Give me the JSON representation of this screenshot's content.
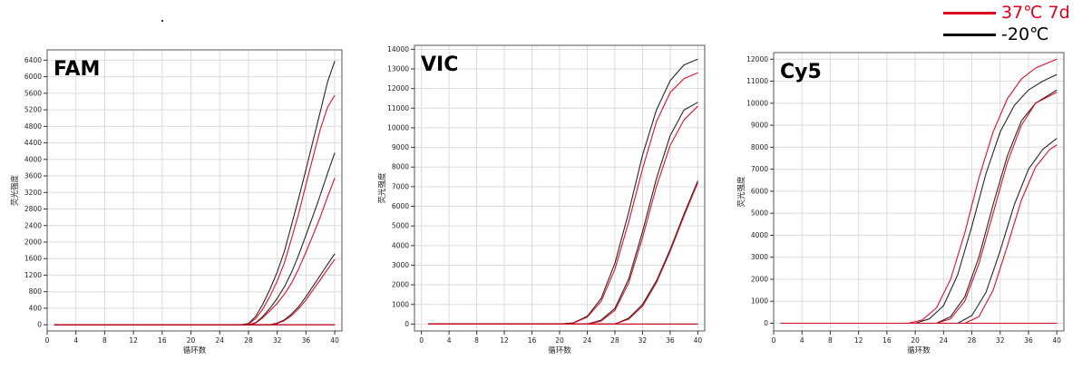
{
  "legend": {
    "items": [
      {
        "label": "37℃ 7d",
        "color": "#e0001b"
      },
      {
        "label": "-20℃",
        "color": "#000000"
      }
    ]
  },
  "chart_data": [
    {
      "type": "line",
      "title": "FAM",
      "xlabel": "循环数",
      "ylabel": "荧光强度",
      "xlim": [
        0,
        41
      ],
      "ylim": [
        -150,
        6650
      ],
      "xticks": [
        0,
        4,
        8,
        12,
        16,
        20,
        24,
        28,
        32,
        36,
        40
      ],
      "yticks": [
        0,
        400,
        800,
        1200,
        1600,
        2000,
        2400,
        2800,
        3200,
        3600,
        4000,
        4400,
        4800,
        5200,
        5600,
        6000,
        6400
      ],
      "grid": true,
      "series": [
        {
          "group": "-20℃",
          "x": [
            1,
            27,
            28,
            29,
            30,
            31,
            32,
            33,
            34,
            35,
            36,
            37,
            38,
            39,
            40
          ],
          "y": [
            0,
            0,
            30,
            200,
            500,
            860,
            1280,
            1780,
            2420,
            3070,
            3760,
            4460,
            5160,
            5870,
            6380
          ]
        },
        {
          "group": "37℃ 7d",
          "x": [
            1,
            27,
            28,
            29,
            30,
            31,
            32,
            33,
            34,
            35,
            36,
            37,
            38,
            39,
            40
          ],
          "y": [
            0,
            0,
            20,
            150,
            380,
            690,
            1060,
            1500,
            2090,
            2700,
            3400,
            4070,
            4730,
            5260,
            5550
          ]
        },
        {
          "group": "-20℃",
          "x": [
            1,
            28,
            29,
            30,
            31,
            32,
            33,
            34,
            35,
            36,
            37,
            38,
            39,
            40
          ],
          "y": [
            0,
            0,
            50,
            200,
            400,
            640,
            920,
            1270,
            1690,
            2170,
            2650,
            3140,
            3660,
            4160
          ]
        },
        {
          "group": "37℃ 7d",
          "x": [
            1,
            28,
            29,
            30,
            31,
            32,
            33,
            34,
            35,
            36,
            37,
            38,
            39,
            40
          ],
          "y": [
            0,
            0,
            40,
            170,
            340,
            520,
            740,
            1010,
            1360,
            1760,
            2180,
            2610,
            3090,
            3550
          ]
        },
        {
          "group": "-20℃",
          "x": [
            1,
            31,
            32,
            33,
            34,
            35,
            36,
            37,
            38,
            39,
            40
          ],
          "y": [
            0,
            0,
            40,
            120,
            260,
            440,
            680,
            940,
            1200,
            1460,
            1720
          ]
        },
        {
          "group": "37℃ 7d",
          "x": [
            1,
            31,
            32,
            33,
            34,
            35,
            36,
            37,
            38,
            39,
            40
          ],
          "y": [
            0,
            0,
            30,
            100,
            220,
            390,
            600,
            850,
            1090,
            1340,
            1580
          ]
        },
        {
          "group": "-20℃",
          "x": [
            1,
            40
          ],
          "y": [
            0,
            0
          ]
        },
        {
          "group": "37℃ 7d",
          "x": [
            1,
            40
          ],
          "y": [
            0,
            0
          ]
        }
      ]
    },
    {
      "type": "line",
      "title": "VIC",
      "xlabel": "循环数",
      "ylabel": "荧光强度",
      "xlim": [
        -1,
        41
      ],
      "ylim": [
        -350,
        14200
      ],
      "xticks": [
        0,
        4,
        8,
        12,
        16,
        20,
        24,
        28,
        32,
        36,
        40
      ],
      "yticks": [
        0,
        1000,
        2000,
        3000,
        4000,
        5000,
        6000,
        7000,
        8000,
        9000,
        10000,
        11000,
        12000,
        13000,
        14000
      ],
      "grid": true,
      "series": [
        {
          "group": "-20℃",
          "x": [
            1,
            20,
            22,
            24,
            26,
            28,
            30,
            32,
            34,
            36,
            38,
            40
          ],
          "y": [
            0,
            0,
            60,
            400,
            1300,
            3100,
            5700,
            8600,
            10900,
            12400,
            13200,
            13500
          ]
        },
        {
          "group": "37℃ 7d",
          "x": [
            1,
            20,
            22,
            24,
            26,
            28,
            30,
            32,
            34,
            36,
            38,
            40
          ],
          "y": [
            0,
            0,
            50,
            350,
            1150,
            2800,
            5200,
            7900,
            10300,
            11800,
            12500,
            12800
          ]
        },
        {
          "group": "-20℃",
          "x": [
            1,
            24,
            26,
            28,
            30,
            32,
            34,
            36,
            38,
            40
          ],
          "y": [
            0,
            0,
            200,
            800,
            2300,
            4700,
            7400,
            9600,
            10900,
            11300
          ]
        },
        {
          "group": "37℃ 7d",
          "x": [
            1,
            24,
            26,
            28,
            30,
            32,
            34,
            36,
            38,
            40
          ],
          "y": [
            0,
            0,
            150,
            700,
            2100,
            4400,
            7000,
            9100,
            10400,
            11100
          ]
        },
        {
          "group": "-20℃",
          "x": [
            1,
            28,
            30,
            32,
            34,
            36,
            38,
            40
          ],
          "y": [
            0,
            0,
            300,
            1000,
            2200,
            3800,
            5600,
            7300
          ]
        },
        {
          "group": "37℃ 7d",
          "x": [
            1,
            28,
            30,
            32,
            34,
            36,
            38,
            40
          ],
          "y": [
            0,
            0,
            250,
            900,
            2100,
            3700,
            5500,
            7200
          ]
        },
        {
          "group": "-20℃",
          "x": [
            1,
            40
          ],
          "y": [
            0,
            0
          ]
        },
        {
          "group": "37℃ 7d",
          "x": [
            1,
            40
          ],
          "y": [
            0,
            0
          ]
        }
      ]
    },
    {
      "type": "line",
      "title": "Cy5",
      "xlabel": "循环数",
      "ylabel": "荧光强度",
      "xlim": [
        0,
        41
      ],
      "ylim": [
        -350,
        12300
      ],
      "xticks": [
        0,
        4,
        8,
        12,
        16,
        20,
        24,
        28,
        32,
        36,
        40
      ],
      "yticks": [
        0,
        1000,
        2000,
        3000,
        4000,
        5000,
        6000,
        7000,
        8000,
        9000,
        10000,
        11000,
        12000
      ],
      "grid": true,
      "series": [
        {
          "group": "37℃ 7d",
          "x": [
            1,
            19,
            21,
            23,
            25,
            27,
            29,
            31,
            33,
            35,
            37,
            40
          ],
          "y": [
            0,
            0,
            150,
            700,
            2000,
            4100,
            6600,
            8700,
            10200,
            11100,
            11600,
            12000
          ]
        },
        {
          "group": "-20℃",
          "x": [
            1,
            20,
            22,
            24,
            26,
            28,
            30,
            32,
            34,
            36,
            38,
            40
          ],
          "y": [
            0,
            0,
            200,
            800,
            2200,
            4400,
            6800,
            8700,
            9900,
            10600,
            11000,
            11300
          ]
        },
        {
          "group": "-20℃",
          "x": [
            1,
            23,
            25,
            27,
            29,
            31,
            33,
            35,
            37,
            40
          ],
          "y": [
            0,
            0,
            300,
            1200,
            3000,
            5400,
            7600,
            9200,
            10000,
            10600
          ]
        },
        {
          "group": "37℃ 7d",
          "x": [
            1,
            23,
            25,
            27,
            29,
            31,
            33,
            35,
            37,
            40
          ],
          "y": [
            0,
            0,
            200,
            1000,
            2700,
            5000,
            7300,
            9000,
            10000,
            10500
          ]
        },
        {
          "group": "-20℃",
          "x": [
            1,
            26,
            28,
            30,
            32,
            34,
            36,
            38,
            40
          ],
          "y": [
            0,
            0,
            350,
            1400,
            3300,
            5400,
            7000,
            7900,
            8400
          ]
        },
        {
          "group": "37℃ 7d",
          "x": [
            1,
            27,
            29,
            31,
            33,
            35,
            37,
            39,
            40
          ],
          "y": [
            0,
            0,
            300,
            1500,
            3500,
            5600,
            7100,
            7900,
            8100
          ]
        },
        {
          "group": "-20℃",
          "x": [
            1,
            40
          ],
          "y": [
            0,
            0
          ]
        },
        {
          "group": "37℃ 7d",
          "x": [
            1,
            40
          ],
          "y": [
            0,
            0
          ]
        }
      ]
    }
  ]
}
